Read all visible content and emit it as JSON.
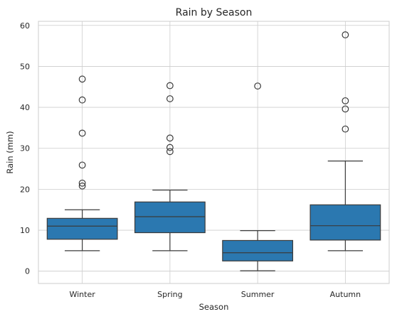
{
  "chart_data": {
    "type": "box",
    "title": "Rain by Season",
    "xlabel": "Season",
    "ylabel": "Rain (mm)",
    "ylim": [
      -3,
      61
    ],
    "yticks": [
      0,
      10,
      20,
      30,
      40,
      50,
      60
    ],
    "ytick_labels": [
      "0",
      "10",
      "20",
      "30",
      "40",
      "50",
      "60"
    ],
    "grid": true,
    "categories": [
      "Winter",
      "Spring",
      "Summer",
      "Autumn"
    ],
    "color": "#2b78b0",
    "boxes": [
      {
        "category": "Winter",
        "whislo": 5.0,
        "q1": 7.8,
        "med": 11.0,
        "q3": 12.9,
        "whishi": 15.0,
        "fliers": [
          20.8,
          21.5,
          25.9,
          33.7,
          41.8,
          46.9
        ]
      },
      {
        "category": "Spring",
        "whislo": 5.0,
        "q1": 9.4,
        "med": 13.3,
        "q3": 16.9,
        "whishi": 19.8,
        "fliers": [
          29.2,
          30.2,
          32.5,
          42.1,
          45.3
        ]
      },
      {
        "category": "Summer",
        "whislo": 0.1,
        "q1": 2.5,
        "med": 4.5,
        "q3": 7.5,
        "whishi": 9.9,
        "fliers": [
          45.2
        ]
      },
      {
        "category": "Autumn",
        "whislo": 5.0,
        "q1": 7.6,
        "med": 11.1,
        "q3": 16.2,
        "whishi": 26.9,
        "fliers": [
          34.7,
          39.6,
          41.6,
          57.7
        ]
      }
    ]
  }
}
